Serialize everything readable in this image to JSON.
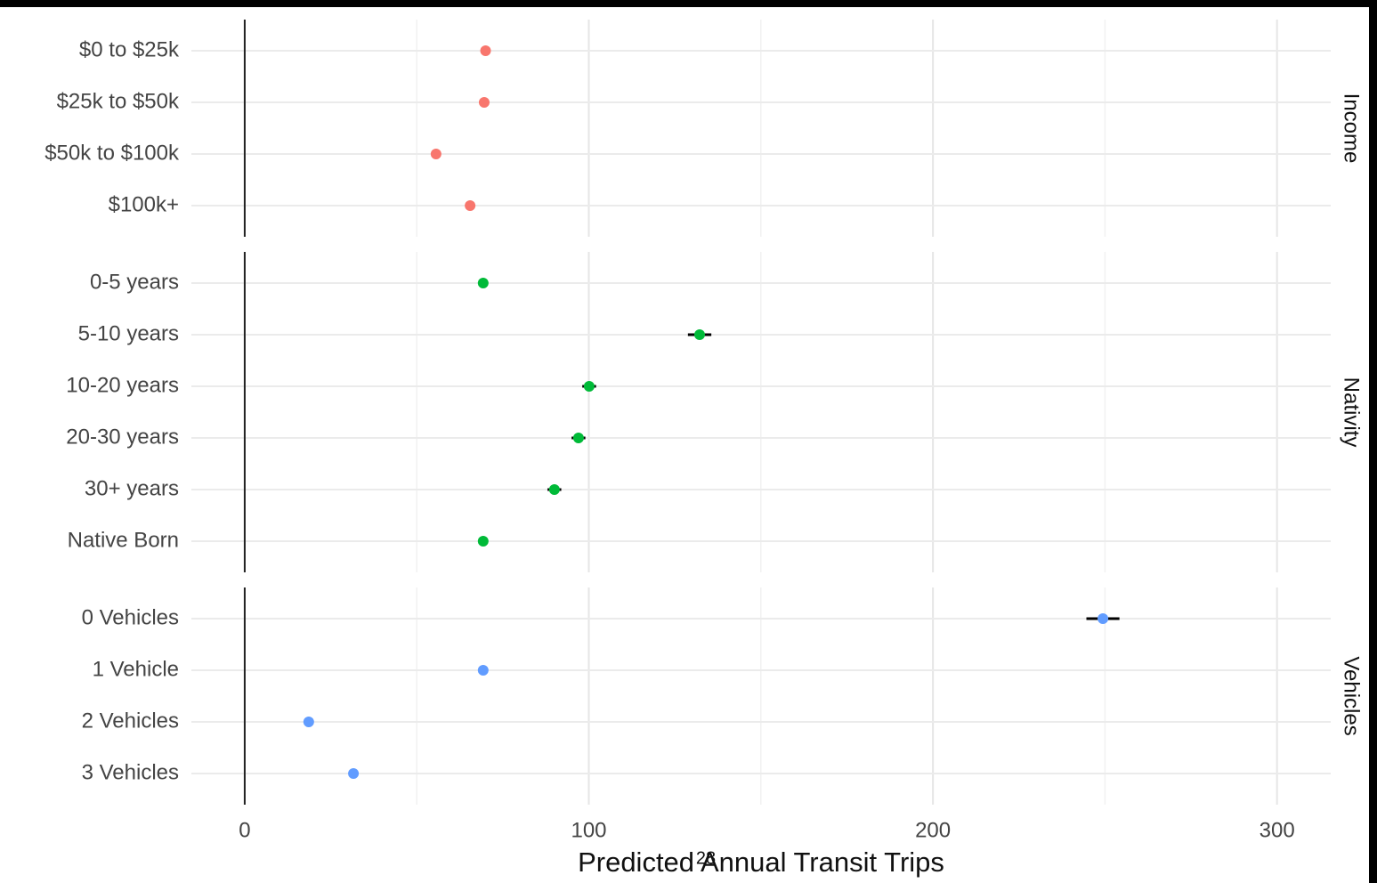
{
  "chart_data": {
    "type": "dot",
    "xlabel": "Predicted Annual Transit Trips",
    "xlim": [
      -15.5,
      315.6
    ],
    "xticks": [
      0,
      100,
      200,
      300
    ],
    "xminor": [
      50,
      150,
      250
    ],
    "reference_line": 0,
    "grid": true,
    "series": [
      {
        "name": "Income",
        "color": "#F8766D",
        "categories": [
          "$0 to $25k",
          "$25k to $50k",
          "$50k to $100k",
          "$100k+"
        ],
        "values": [
          70,
          69.6,
          55.6,
          65.5
        ],
        "errors": [
          0.8,
          0.8,
          0.8,
          0.8
        ]
      },
      {
        "name": "Nativity",
        "color": "#00BA38",
        "categories": [
          "0-5 years",
          "5-10 years",
          "10-20 years",
          "20-30 years",
          "30+ years",
          "Native Born"
        ],
        "values": [
          69.3,
          132.2,
          100.1,
          97,
          90,
          69.3
        ],
        "errors": [
          0.5,
          3.4,
          2,
          2,
          2,
          0.5
        ]
      },
      {
        "name": "Vehicles",
        "color": "#619CFF",
        "categories": [
          "0 Vehicles",
          "1 Vehicle",
          "2 Vehicles",
          "3 Vehicles"
        ],
        "values": [
          249.4,
          69.3,
          18.6,
          31.6
        ],
        "errors": [
          4.8,
          0.5,
          0.5,
          0.5
        ]
      }
    ]
  },
  "page_number": "28"
}
